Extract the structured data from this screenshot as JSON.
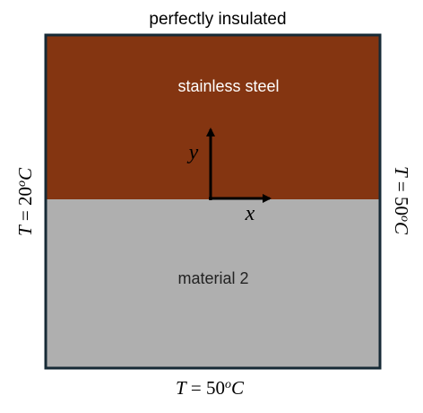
{
  "top_boundary_label": "perfectly insulated",
  "bottom_boundary": {
    "T": "T",
    "eq": " = 50",
    "deg": "o",
    "unit": "C"
  },
  "left_boundary": {
    "T": "T",
    "eq": " = 20",
    "deg": "o",
    "unit": "C"
  },
  "right_boundary": {
    "T": "T",
    "eq": " = 50",
    "deg": "o",
    "unit": "C"
  },
  "upper_region": {
    "label": "stainless steel",
    "color": "#843511"
  },
  "lower_region": {
    "label": "material 2",
    "color": "#afafaf"
  },
  "border_color": "#162a36",
  "axes": {
    "x_label": "x",
    "y_label": "y"
  }
}
